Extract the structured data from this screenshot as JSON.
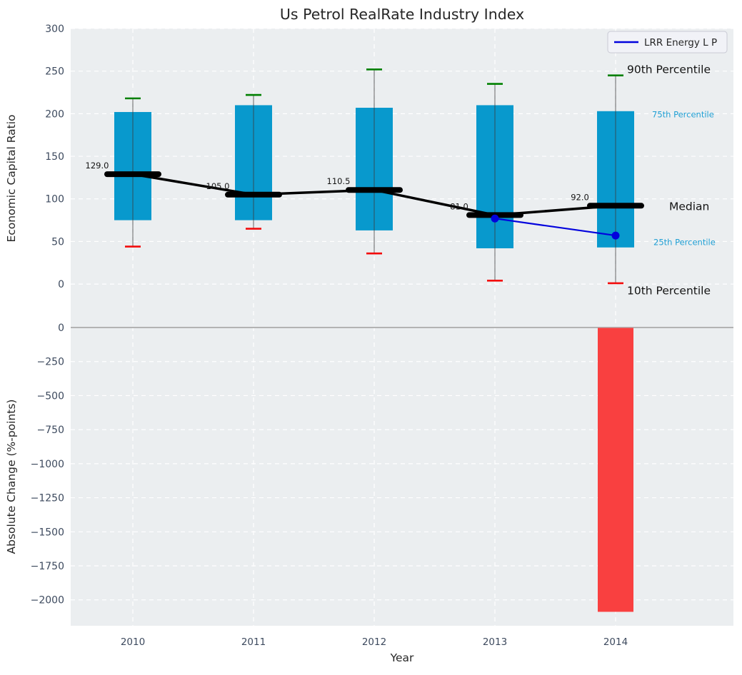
{
  "title": "Us Petrol RealRate Industry Index",
  "legend": {
    "label": "LRR Energy L P"
  },
  "colors": {
    "box_fill": "#0899cd",
    "cap_90": "#008000",
    "cap_10": "#f30b0b",
    "median_line": "#000000",
    "overlay_line": "#0202dd",
    "neg_bar": "#f94040",
    "plot_bg": "#ebeef0",
    "grid": "#ffffff",
    "tick_text": "#3d4a5e",
    "label_text": "#262626",
    "annotation_dark": "#141414",
    "annotation_blue": "#1f9fd4",
    "divider": "#b3b3b3",
    "whisker": "#3c3c3c"
  },
  "chart_data": [
    {
      "type": "box-percentile",
      "title": "Us Petrol RealRate Industry Index",
      "ylabel": "Economic Capital Ratio",
      "categories": [
        2010,
        2011,
        2012,
        2013,
        2014
      ],
      "series": {
        "p90": [
          218,
          222,
          252,
          235,
          245
        ],
        "p75": [
          202,
          210,
          207,
          210,
          203
        ],
        "median": [
          129.0,
          105.0,
          110.5,
          81.0,
          92.0
        ],
        "p25": [
          75,
          75,
          63,
          42,
          43
        ],
        "p10": [
          44,
          65,
          36,
          4,
          1
        ]
      },
      "median_labels": [
        "129.0",
        "105.0",
        "110.5",
        "81.0",
        "92.0"
      ],
      "overlay_line": {
        "name": "LRR Energy L P",
        "x": [
          2013,
          2014
        ],
        "y": [
          77,
          57
        ]
      },
      "annotations": [
        {
          "text": "90th Percentile",
          "at_value": 252,
          "tone": "dark"
        },
        {
          "text": "75th Percentile",
          "at_value": 200,
          "tone": "blue"
        },
        {
          "text": "Median",
          "at_value": 91,
          "tone": "dark"
        },
        {
          "text": "25th Percentile",
          "at_value": 50,
          "tone": "blue"
        },
        {
          "text": "10th Percentile",
          "at_value": -8,
          "tone": "dark"
        }
      ],
      "ylim": [
        -51,
        300
      ],
      "yticks": [
        0,
        50,
        100,
        150,
        200,
        250,
        300
      ],
      "grid": "white-dashed",
      "legend_position": "upper-right"
    },
    {
      "type": "bar",
      "ylabel": "Absolute Change (%-points)",
      "xlabel": "Year",
      "categories": [
        2010,
        2011,
        2012,
        2013,
        2014
      ],
      "values": [
        null,
        null,
        null,
        null,
        -2085
      ],
      "ylim": [
        -2190,
        0
      ],
      "yticks": [
        0,
        -250,
        -500,
        -750,
        -1000,
        -1250,
        -1500,
        -1750,
        -2000
      ],
      "xtick_labels": [
        "2010",
        "2011",
        "2012",
        "2013",
        "2014"
      ],
      "grid": "white-dashed"
    }
  ]
}
